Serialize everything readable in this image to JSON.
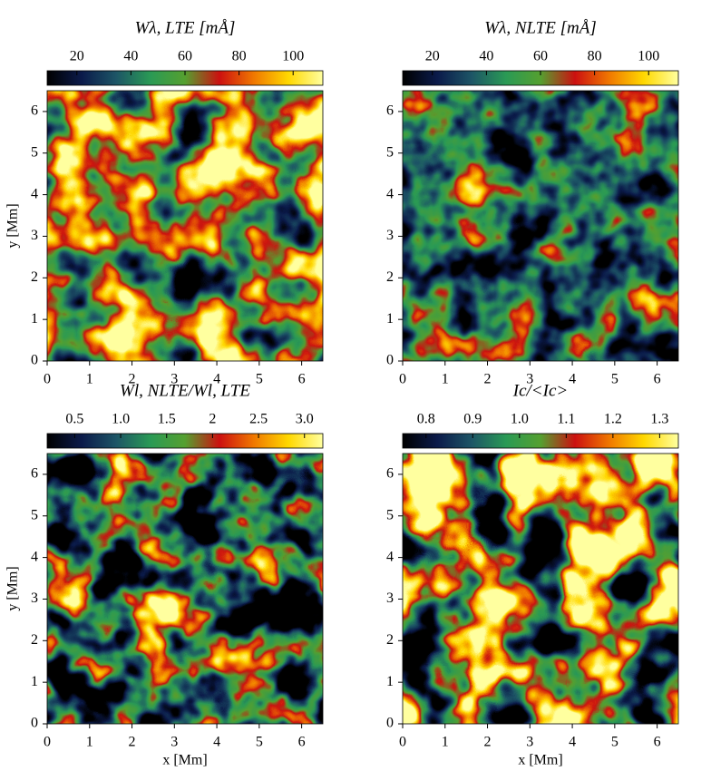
{
  "chart_data": [
    {
      "type": "heatmap",
      "title": "Wλ, LTE [mÅ]",
      "clim": [
        9,
        111
      ],
      "cticks": [
        20,
        40,
        60,
        80,
        100
      ],
      "xlim": [
        0,
        6.5
      ],
      "xticks": [
        0,
        1,
        2,
        3,
        4,
        5,
        6
      ],
      "ylim": [
        0,
        6.5
      ],
      "yticks": [
        0,
        1,
        2,
        3,
        4,
        5,
        6
      ],
      "ylabel": "y [Mm]",
      "colormap": [
        "#000000",
        "#0b1a4a",
        "#1d5566",
        "#2a9a55",
        "#55a030",
        "#cc1010",
        "#f07800",
        "#ffd800",
        "#ffffa0"
      ]
    },
    {
      "type": "heatmap",
      "title": "Wλ, NLTE [mÅ]",
      "clim": [
        9,
        111
      ],
      "cticks": [
        20,
        40,
        60,
        80,
        100
      ],
      "xlim": [
        0,
        6.5
      ],
      "xticks": [
        0,
        1,
        2,
        3,
        4,
        5,
        6
      ],
      "ylim": [
        0,
        6.5
      ],
      "yticks": [
        0,
        1,
        2,
        3,
        4,
        5,
        6
      ],
      "colormap": [
        "#000000",
        "#0b1a4a",
        "#1d5566",
        "#2a9a55",
        "#55a030",
        "#cc1010",
        "#f07800",
        "#ffd800",
        "#ffffa0"
      ]
    },
    {
      "type": "heatmap",
      "title": "Wl, NLTE/Wl, LTE",
      "clim": [
        0.2,
        3.2
      ],
      "cticks": [
        0.5,
        {
          "value": 1,
          "label": "1.0"
        },
        1.5,
        2,
        2.5,
        {
          "value": 3,
          "label": "3.0"
        }
      ],
      "xlim": [
        0,
        6.5
      ],
      "xticks": [
        0,
        1,
        2,
        3,
        4,
        5,
        6
      ],
      "ylim": [
        0,
        6.5
      ],
      "yticks": [
        0,
        1,
        2,
        3,
        4,
        5,
        6
      ],
      "xlabel": "x [Mm]",
      "ylabel": "y [Mm]",
      "colormap": [
        "#000000",
        "#0b1a4a",
        "#1d5566",
        "#2a9a55",
        "#55a030",
        "#cc1010",
        "#f07800",
        "#ffd800",
        "#ffffa0"
      ]
    },
    {
      "type": "heatmap",
      "title": "Ic/<Ic>",
      "clim": [
        0.75,
        1.34
      ],
      "cticks": [
        0.8,
        0.9,
        {
          "value": 1,
          "label": "1.0"
        },
        1.1,
        1.2,
        1.3
      ],
      "xlim": [
        0,
        6.5
      ],
      "xticks": [
        0,
        1,
        2,
        3,
        4,
        5,
        6
      ],
      "ylim": [
        0,
        6.5
      ],
      "yticks": [
        0,
        1,
        2,
        3,
        4,
        5,
        6
      ],
      "xlabel": "x [Mm]",
      "colormap": [
        "#000000",
        "#0b1a4a",
        "#1d5566",
        "#2a9a55",
        "#55a030",
        "#cc1010",
        "#f07800",
        "#ffd800",
        "#ffffa0"
      ]
    }
  ]
}
